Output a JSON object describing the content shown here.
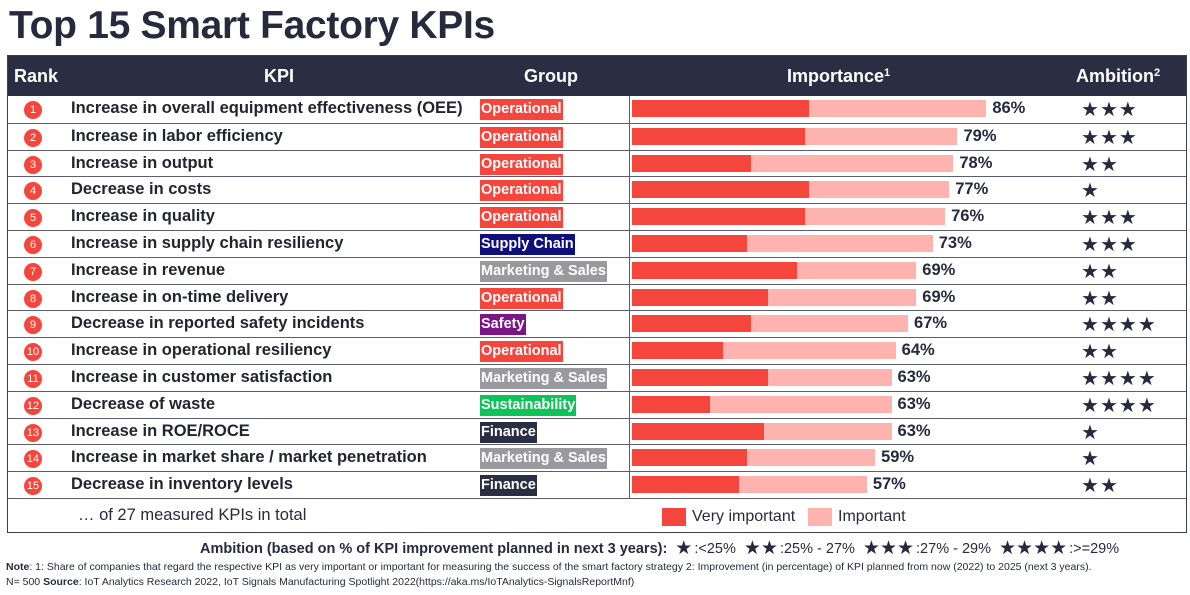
{
  "title": "Top 15 Smart Factory KPIs",
  "colors": {
    "header_bg": "#2a2e42",
    "very_important": "#f5463d",
    "important": "#ffb3ae",
    "text": "#262a3c",
    "groups": {
      "Operational": "#f5463d",
      "Supply Chain": "#0f0f7a",
      "Marketing & Sales": "#9a9a9e",
      "Safety": "#7a1487",
      "Sustainability": "#0fc25a",
      "Finance": "#2a2e42"
    }
  },
  "header": {
    "rank": "Rank",
    "kpi": "KPI",
    "group": "Group",
    "importance": "Importance",
    "importance_sup": "1",
    "ambition": "Ambition",
    "ambition_sup": "2"
  },
  "chart_data": {
    "type": "bar",
    "orientation": "horizontal",
    "stacked": true,
    "title": "Top 15 Smart Factory KPIs",
    "xlabel": "Importance (share of companies, %)",
    "ylabel": "KPI",
    "xlim": [
      0,
      100
    ],
    "legend": [
      "Very important",
      "Important"
    ],
    "legend_position": "bottom",
    "categories": [
      "Increase in overall equipment effectiveness (OEE)",
      "Increase in labor efficiency",
      "Increase in output",
      "Decrease in costs",
      "Increase in quality",
      "Increase in supply chain resiliency",
      "Increase in revenue",
      "Increase in on-time delivery",
      "Decrease in reported safety incidents",
      "Increase in operational resiliency",
      "Increase in customer satisfaction",
      "Decrease of waste",
      "Increase in ROE/ROCE",
      "Increase in market share / market penetration",
      "Decrease in inventory levels"
    ],
    "series": [
      {
        "name": "Very important",
        "values": [
          43,
          42,
          29,
          43,
          42,
          28,
          40,
          33,
          29,
          22,
          33,
          19,
          32,
          28,
          26
        ]
      },
      {
        "name": "Important",
        "values": [
          43,
          37,
          49,
          34,
          34,
          45,
          29,
          36,
          38,
          42,
          30,
          44,
          31,
          31,
          31
        ]
      }
    ],
    "totals": [
      86,
      79,
      78,
      77,
      76,
      73,
      69,
      69,
      67,
      64,
      63,
      63,
      63,
      59,
      57
    ],
    "total_labels": [
      "86%",
      "79%",
      "78%",
      "77%",
      "76%",
      "73%",
      "69%",
      "69%",
      "67%",
      "64%",
      "63%",
      "63%",
      "63%",
      "59%",
      "57%"
    ]
  },
  "rows": [
    {
      "rank": "1",
      "kpi": "Increase in overall equipment effectiveness (OEE)",
      "group": "Operational",
      "stars": 3
    },
    {
      "rank": "2",
      "kpi": "Increase in labor efficiency",
      "group": "Operational",
      "stars": 3
    },
    {
      "rank": "3",
      "kpi": "Increase in output",
      "group": "Operational",
      "stars": 2
    },
    {
      "rank": "4",
      "kpi": "Decrease in costs",
      "group": "Operational",
      "stars": 1
    },
    {
      "rank": "5",
      "kpi": "Increase in quality",
      "group": "Operational",
      "stars": 3
    },
    {
      "rank": "6",
      "kpi": "Increase in supply chain resiliency",
      "group": "Supply Chain",
      "stars": 3
    },
    {
      "rank": "7",
      "kpi": "Increase in revenue",
      "group": "Marketing & Sales",
      "stars": 2
    },
    {
      "rank": "8",
      "kpi": "Increase in on-time delivery",
      "group": "Operational",
      "stars": 2
    },
    {
      "rank": "9",
      "kpi": "Decrease in reported safety incidents",
      "group": "Safety",
      "stars": 4
    },
    {
      "rank": "10",
      "kpi": "Increase in operational resiliency",
      "group": "Operational",
      "stars": 2
    },
    {
      "rank": "11",
      "kpi": "Increase in customer satisfaction",
      "group": "Marketing & Sales",
      "stars": 4
    },
    {
      "rank": "12",
      "kpi": "Decrease of waste",
      "group": "Sustainability",
      "stars": 4
    },
    {
      "rank": "13",
      "kpi": "Increase in ROE/ROCE",
      "group": "Finance",
      "stars": 1
    },
    {
      "rank": "14",
      "kpi": "Increase in market share / market penetration",
      "group": "Marketing & Sales",
      "stars": 1
    },
    {
      "rank": "15",
      "kpi": "Decrease in inventory levels",
      "group": "Finance",
      "stars": 2
    }
  ],
  "footer": {
    "total_note": "… of 27 measured KPIs in total",
    "legend_very_important": "Very important",
    "legend_important": "Important"
  },
  "ambition_legend": {
    "label": "Ambition (based on % of KPI improvement planned in next 3 years):",
    "items": [
      {
        "stars": "★",
        "range": ":<25%"
      },
      {
        "stars": "★★",
        "range": ":25% - 27%"
      },
      {
        "stars": "★★★",
        "range": ":27% - 29%"
      },
      {
        "stars": "★★★★",
        "range": ":>=29%"
      }
    ]
  },
  "note": {
    "note_label": "Note",
    "note_text": ": 1: Share of companies that regard the respective KPI as very important or important for measuring the success of the smart factory strategy 2: Improvement (in percentage) of KPI planned from now (2022) to 2025 (next 3 years).",
    "n_text": "N= 500 ",
    "source_label": "Source",
    "source_text": ": IoT Analytics Research 2022, IoT Signals Manufacturing Spotlight 2022(https://aka.ms/IoTAnalytics-SignalsReportMnf)"
  },
  "star_glyph": "★"
}
